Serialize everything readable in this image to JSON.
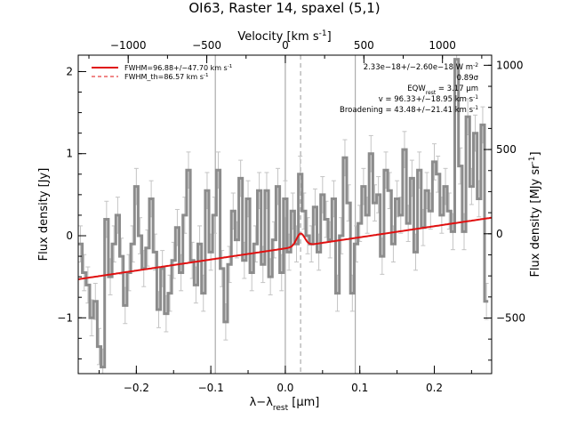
{
  "chart_data": {
    "type": "line",
    "title": "OI63, Raster 14, spaxel (5,1)",
    "xlabel": "λ−λ_rest [μm]",
    "ylabel_left": "Flux density [Jy]",
    "ylabel_right": "Flux density [MJy sr⁻¹]",
    "top_axis_label": "Velocity [km s⁻¹]",
    "xlim": [
      -0.278,
      0.277
    ],
    "ylim": [
      -1.68,
      2.2
    ],
    "right_ylim": [
      -830,
      1060
    ],
    "top_xlim": [
      -1318,
      1313
    ],
    "x_ticks": [
      -0.2,
      -0.1,
      0.0,
      0.1,
      0.2
    ],
    "x_tick_labels": [
      "−0.2",
      "−0.1",
      "0.0",
      "0.1",
      "0.2"
    ],
    "y_ticks": [
      -1,
      0,
      1,
      2
    ],
    "y_tick_labels": [
      "−1",
      "0",
      "1",
      "2"
    ],
    "top_ticks": [
      -1000,
      -500,
      0,
      500,
      1000
    ],
    "top_tick_labels": [
      "−1000",
      "−500",
      "0",
      "500",
      "1000"
    ],
    "right_ticks": [
      -500,
      0,
      500,
      1000
    ],
    "right_tick_labels": [
      "−500",
      "0",
      "500",
      "1000"
    ],
    "vertical_lines_x": [
      -0.094,
      0.0,
      0.094
    ],
    "dashed_line_x": 0.0205,
    "legend": {
      "position": "top-left",
      "entries": [
        {
          "label": "FWHM=96.88+/−47.70 km s⁻¹",
          "style": "solid"
        },
        {
          "label": "FWHM_th=86.57 km s⁻¹",
          "style": "dashed"
        }
      ]
    },
    "annotations": [
      "2.33e−18+/−2.60e−18 W m⁻²",
      "0.89σ",
      "EQW_rest = 3.17 μm",
      "v = 96.33+/−18.95 km s⁻¹",
      "Broadening = 43.48+/−21.41 km s⁻¹"
    ],
    "colors": {
      "data": "#8c8c8c",
      "error": "#c4c4c4",
      "fit": "#e01010",
      "vline": "#9a9a9a"
    },
    "spectrum": {
      "x": [
        -0.275,
        -0.27,
        -0.265,
        -0.26,
        -0.255,
        -0.25,
        -0.245,
        -0.24,
        -0.235,
        -0.23,
        -0.225,
        -0.22,
        -0.215,
        -0.21,
        -0.205,
        -0.2,
        -0.195,
        -0.19,
        -0.185,
        -0.18,
        -0.175,
        -0.17,
        -0.165,
        -0.16,
        -0.155,
        -0.15,
        -0.145,
        -0.14,
        -0.135,
        -0.13,
        -0.125,
        -0.12,
        -0.115,
        -0.11,
        -0.105,
        -0.1,
        -0.095,
        -0.09,
        -0.085,
        -0.08,
        -0.075,
        -0.07,
        -0.065,
        -0.06,
        -0.055,
        -0.05,
        -0.045,
        -0.04,
        -0.035,
        -0.03,
        -0.025,
        -0.02,
        -0.015,
        -0.01,
        -0.005,
        0.0,
        0.005,
        0.01,
        0.015,
        0.02,
        0.025,
        0.03,
        0.035,
        0.04,
        0.045,
        0.05,
        0.055,
        0.06,
        0.065,
        0.07,
        0.075,
        0.08,
        0.085,
        0.09,
        0.095,
        0.1,
        0.105,
        0.11,
        0.115,
        0.12,
        0.125,
        0.13,
        0.135,
        0.14,
        0.145,
        0.15,
        0.155,
        0.16,
        0.165,
        0.17,
        0.175,
        0.18,
        0.185,
        0.19,
        0.195,
        0.2,
        0.205,
        0.21,
        0.215,
        0.22,
        0.225,
        0.23,
        0.235,
        0.24,
        0.245,
        0.25,
        0.255,
        0.26,
        0.265,
        0.27
      ],
      "y": [
        -0.1,
        -0.45,
        -0.6,
        -1.0,
        -0.8,
        -1.35,
        -1.6,
        0.2,
        -0.5,
        -0.1,
        0.25,
        -0.25,
        -0.85,
        -0.45,
        -0.1,
        0.6,
        0.0,
        -0.4,
        -0.15,
        0.45,
        -0.2,
        -0.9,
        -0.4,
        -0.95,
        -0.7,
        -0.3,
        0.1,
        -0.45,
        0.25,
        0.8,
        -0.3,
        -0.6,
        -0.1,
        -0.7,
        0.55,
        -0.2,
        0.25,
        0.8,
        -0.4,
        -1.05,
        -0.35,
        0.3,
        -0.05,
        0.7,
        -0.3,
        0.45,
        -0.45,
        -0.1,
        0.55,
        -0.35,
        0.55,
        -0.5,
        -0.05,
        0.6,
        -0.45,
        0.45,
        -0.2,
        0.3,
        -0.1,
        0.75,
        0.3,
        0.0,
        -0.1,
        0.35,
        -0.2,
        0.5,
        0.2,
        -0.05,
        0.45,
        -0.7,
        0.0,
        0.95,
        0.4,
        -0.7,
        -0.1,
        0.15,
        0.6,
        0.25,
        1.0,
        0.4,
        0.5,
        -0.25,
        0.8,
        0.55,
        -0.1,
        0.45,
        0.25,
        1.05,
        0.15,
        0.7,
        -0.2,
        0.8,
        0.1,
        0.55,
        0.3,
        0.9,
        0.75,
        0.25,
        0.6,
        0.3,
        0.05,
        2.15,
        0.85,
        0.05,
        1.45,
        0.6,
        1.25,
        0.45,
        1.35,
        -0.8
      ],
      "err": 0.22
    },
    "fit": {
      "baseline_y_at_xmin": -0.53,
      "baseline_y_at_xmax": 0.22,
      "gaussian": {
        "center": 0.0205,
        "amplitude": 0.155,
        "sigma": 0.0055
      }
    }
  }
}
